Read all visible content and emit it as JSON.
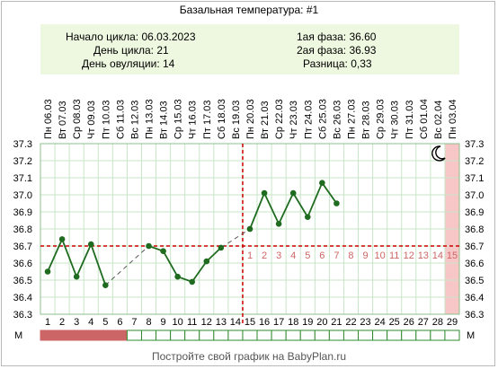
{
  "title": "Базальная температура: #1",
  "info": {
    "cycle_start_label": "Начало цикла:",
    "cycle_start_value": "06.03.2023",
    "cycle_day_label": "День цикла:",
    "cycle_day_value": "21",
    "ovulation_day_label": "День овуляции:",
    "ovulation_day_value": "14",
    "phase1_label": "1ая фаза:",
    "phase1_value": "36.60",
    "phase2_label": "2ая фаза:",
    "phase2_value": "36.93",
    "diff_label": "Разница:",
    "diff_value": "0,33"
  },
  "footer": "Постройте свой график на BabyPlan.ru",
  "menstruation_label": "М",
  "moon_icon": "crescent-moon-icon",
  "colors": {
    "line": "#1f6b1f",
    "coverline": "#cc0000",
    "grid": "#c8e6c8",
    "menstruation": "#cc6666",
    "highlight": "#f7c6c6",
    "luteal_numbers": "#cc6666"
  },
  "chart_data": {
    "type": "line",
    "days": [
      1,
      2,
      3,
      4,
      5,
      6,
      7,
      8,
      9,
      10,
      11,
      12,
      13,
      14,
      15,
      16,
      17,
      18,
      19,
      20,
      21,
      22,
      23,
      24,
      25,
      26,
      27,
      28,
      29
    ],
    "dates": [
      "06.03",
      "07.03",
      "08.03",
      "09.03",
      "10.03",
      "11.03",
      "12.03",
      "13.03",
      "14.03",
      "15.03",
      "16.03",
      "17.03",
      "18.03",
      "19.03",
      "20.03",
      "21.03",
      "22.03",
      "23.03",
      "24.03",
      "25.03",
      "26.03",
      "27.03",
      "28.03",
      "29.03",
      "30.03",
      "31.03",
      "01.04",
      "02.04",
      "03.04"
    ],
    "weekdays": [
      "Пн",
      "Вт",
      "Ср",
      "Чт",
      "Пт",
      "Сб",
      "Вс",
      "Пн",
      "Вт",
      "Ср",
      "Чт",
      "Пт",
      "Сб",
      "Вс",
      "Пн",
      "Вт",
      "Ср",
      "Чт",
      "Пт",
      "Сб",
      "Вс",
      "Пн",
      "Вт",
      "Ср",
      "Чт",
      "Пт",
      "Сб",
      "Вс",
      "Пн"
    ],
    "temperatures": [
      36.55,
      36.74,
      36.52,
      36.71,
      36.47,
      null,
      null,
      36.7,
      36.67,
      36.52,
      36.49,
      36.61,
      36.69,
      null,
      36.8,
      37.01,
      36.83,
      37.01,
      36.87,
      37.07,
      36.95,
      null,
      null,
      null,
      null,
      null,
      null,
      null,
      null
    ],
    "ylim": [
      36.3,
      37.3
    ],
    "yticks": [
      36.3,
      36.4,
      36.5,
      36.6,
      36.7,
      36.8,
      36.9,
      37.0,
      37.1,
      37.2,
      37.3
    ],
    "coverline": 36.7,
    "ovulation_day": 14,
    "luteal_day_numbers": [
      "1",
      "2",
      "3",
      "4",
      "5",
      "6",
      "7",
      "8",
      "9",
      "10",
      "11",
      "12",
      "13",
      "14",
      "15"
    ],
    "luteal_start_day": 15,
    "menstruation_days": [
      1,
      2,
      3,
      4,
      5,
      6
    ],
    "highlight_day": 29,
    "grid": true
  }
}
